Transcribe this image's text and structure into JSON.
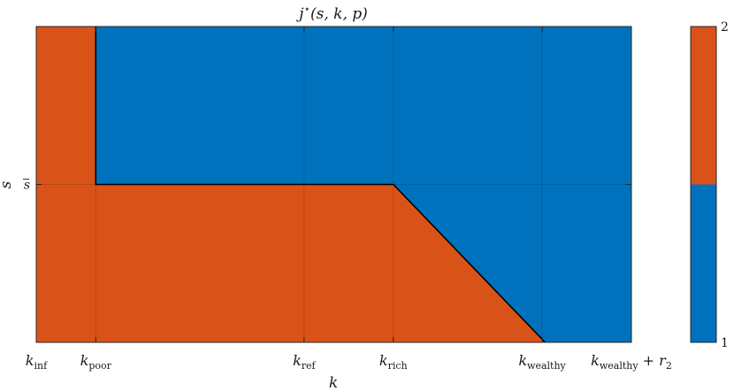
{
  "chart_data": [
    {
      "type": "heatmap",
      "title": {
        "main": "j",
        "sup": "⋆",
        "args": "(s, k, p)"
      },
      "xlabel": "k",
      "ylabel": "s",
      "x_ticks": [
        {
          "base": "k",
          "sub": "inf",
          "suffix": "",
          "x": 0.0
        },
        {
          "base": "k",
          "sub": "poor",
          "suffix": "",
          "x": 0.1
        },
        {
          "base": "k",
          "sub": "ref",
          "suffix": "",
          "x": 0.45
        },
        {
          "base": "k",
          "sub": "rich",
          "suffix": "",
          "x": 0.6
        },
        {
          "base": "k",
          "sub": "wealthy",
          "suffix": "",
          "x": 0.85
        },
        {
          "base": "k",
          "sub": "wealthy",
          "suffix": " + r",
          "suffix_sub": "2",
          "x": 1.0
        }
      ],
      "y_ticks": [
        {
          "base": "s",
          "bar": true,
          "y": 0.5
        }
      ],
      "xlim": [
        0.0,
        1.0
      ],
      "ylim": [
        0.0,
        1.0
      ],
      "regions": [
        {
          "value": 2,
          "label": "j = 2",
          "polygon": [
            [
              0.0,
              0.0
            ],
            [
              0.1,
              0.0
            ],
            [
              0.1,
              1.0
            ],
            [
              0.0,
              1.0
            ]
          ]
        },
        {
          "value": 2,
          "label": "j = 2",
          "polygon": [
            [
              0.1,
              0.0
            ],
            [
              0.855,
              0.0
            ],
            [
              0.6,
              0.5
            ],
            [
              0.1,
              0.5
            ]
          ]
        },
        {
          "value": 1,
          "label": "j = 1",
          "polygon": [
            [
              0.1,
              0.5
            ],
            [
              0.6,
              0.5
            ],
            [
              0.855,
              0.0
            ],
            [
              1.0,
              0.0
            ],
            [
              1.0,
              1.0
            ],
            [
              0.1,
              1.0
            ]
          ]
        }
      ],
      "boundary": [
        [
          0.1,
          1.0
        ],
        [
          0.1,
          0.5
        ],
        [
          0.6,
          0.5
        ],
        [
          0.855,
          0.0
        ]
      ],
      "grid": true,
      "colors": {
        "1": "#0072BD",
        "2": "#D95319",
        "boundary": "#000000"
      },
      "colorbar": {
        "min": 1,
        "max": 2,
        "min_label": "1",
        "max_label": "2",
        "split": 1.5
      }
    }
  ]
}
